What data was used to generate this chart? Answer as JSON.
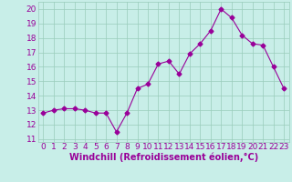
{
  "x": [
    0,
    1,
    2,
    3,
    4,
    5,
    6,
    7,
    8,
    9,
    10,
    11,
    12,
    13,
    14,
    15,
    16,
    17,
    18,
    19,
    20,
    21,
    22,
    23
  ],
  "y": [
    12.8,
    13.0,
    13.1,
    13.1,
    13.0,
    12.8,
    12.8,
    11.5,
    12.8,
    14.5,
    14.8,
    16.2,
    16.4,
    15.5,
    16.9,
    17.6,
    18.5,
    20.0,
    19.4,
    18.2,
    17.6,
    17.5,
    16.0,
    14.5
  ],
  "line_color": "#990099",
  "marker": "D",
  "marker_size": 2.5,
  "bg_color": "#c8eee8",
  "grid_color": "#99ccbb",
  "xlabel": "Windchill (Refroidissement éolien,°C)",
  "xlabel_fontsize": 7,
  "ylabel_ticks": [
    11,
    12,
    13,
    14,
    15,
    16,
    17,
    18,
    19,
    20
  ],
  "xtick_labels": [
    "0",
    "1",
    "2",
    "3",
    "4",
    "5",
    "6",
    "7",
    "8",
    "9",
    "10",
    "11",
    "12",
    "13",
    "14",
    "15",
    "16",
    "17",
    "18",
    "19",
    "20",
    "21",
    "22",
    "23"
  ],
  "ylim": [
    10.8,
    20.5
  ],
  "xlim": [
    -0.5,
    23.5
  ],
  "tick_fontsize": 6.5
}
